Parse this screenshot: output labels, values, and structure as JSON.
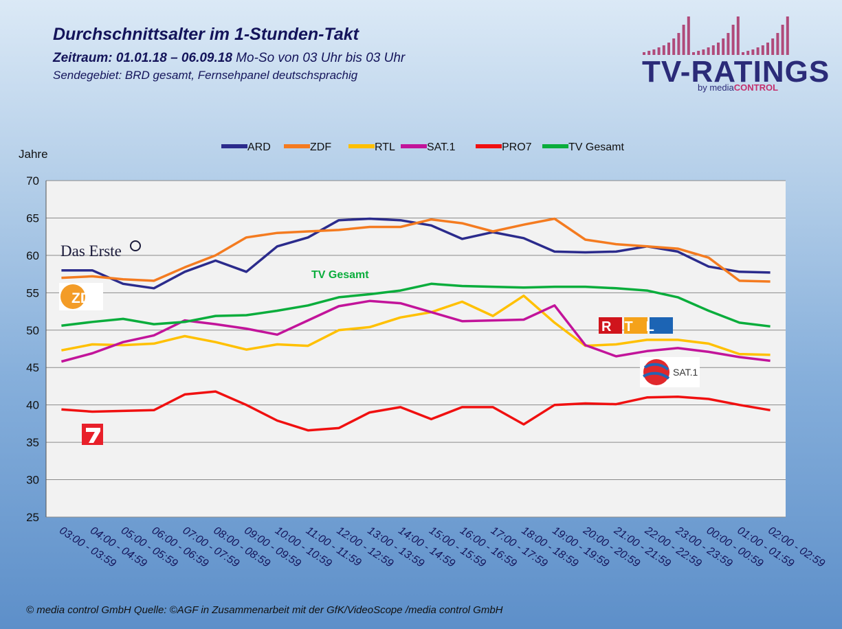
{
  "header": {
    "title": "Durchschnittsalter  im 1-Stunden-Takt",
    "subtitle_bold": "Zeitraum: 01.01.18 – 06.09.18",
    "subtitle_rest": " Mo-So von 03 Uhr bis 03 Uhr",
    "region": "Sendegebiet: BRD gesamt, Fernsehpanel deutschsprachig"
  },
  "logo": {
    "text": "TV-RATINGS",
    "by": "by media",
    "brand": "CONTROL",
    "bar_color": "#b04a7a"
  },
  "footer": "© media control GmbH  Quelle: ©AGF in Zusammenarbeit mit der GfK/VideoScope /media control GmbH",
  "annotations": {
    "tv_gesamt": "TV Gesamt",
    "das_erste": "Das Erste",
    "zdf": "ZDF",
    "sat1": "SAT.1",
    "rtl": "RTL"
  },
  "chart_data": {
    "type": "line",
    "ylabel": "Jahre",
    "ylim": [
      25,
      70
    ],
    "yticks": [
      25,
      30,
      35,
      40,
      45,
      50,
      55,
      60,
      65,
      70
    ],
    "grid": true,
    "legend_position": "top",
    "categories": [
      "03:00 - 03:59",
      "04:00 - 04:59",
      "05:00 - 05:59",
      "06:00 - 06:59",
      "07:00 - 07:59",
      "08:00 - 08:59",
      "09:00 - 09:59",
      "10:00 - 10:59",
      "11:00 - 11:59",
      "12:00 - 12:59",
      "13:00 - 13:59",
      "14:00 - 14:59",
      "15:00 - 15:59",
      "16:00 - 16:59",
      "17:00 - 17:59",
      "18:00 - 18:59",
      "19:00 - 19:59",
      "20:00 - 20:59",
      "21:00 - 21:59",
      "22:00 - 22:59",
      "23:00 - 23:59",
      "00:00 - 00:59",
      "01:00 - 01:59",
      "02:00 - 02:59"
    ],
    "series": [
      {
        "name": "ARD",
        "color": "#2b2b8c",
        "values": [
          58.0,
          58.0,
          56.2,
          55.6,
          57.8,
          59.3,
          57.8,
          61.2,
          62.4,
          64.7,
          64.9,
          64.7,
          64.0,
          62.2,
          63.1,
          62.3,
          60.5,
          60.4,
          60.5,
          61.2,
          60.5,
          58.5,
          57.8,
          57.7
        ]
      },
      {
        "name": "ZDF",
        "color": "#f47b20",
        "values": [
          57.0,
          57.2,
          56.8,
          56.6,
          58.4,
          60.0,
          62.4,
          63.0,
          63.2,
          63.4,
          63.8,
          63.8,
          64.8,
          64.3,
          63.2,
          64.1,
          64.9,
          62.1,
          61.5,
          61.2,
          60.9,
          59.7,
          56.6,
          56.5
        ]
      },
      {
        "name": "RTL",
        "color": "#ffc000",
        "values": [
          47.3,
          48.1,
          48.0,
          48.2,
          49.2,
          48.4,
          47.4,
          48.1,
          47.9,
          50.0,
          50.4,
          51.7,
          52.4,
          53.8,
          51.9,
          54.6,
          51.0,
          47.9,
          48.1,
          48.7,
          48.7,
          48.2,
          46.8,
          46.7
        ]
      },
      {
        "name": "SAT.1",
        "color": "#c2149a",
        "values": [
          45.8,
          46.9,
          48.4,
          49.3,
          51.3,
          50.8,
          50.2,
          49.4,
          51.3,
          53.2,
          53.9,
          53.6,
          52.4,
          51.2,
          51.3,
          51.4,
          53.3,
          48.0,
          46.5,
          47.2,
          47.6,
          47.1,
          46.4,
          45.9
        ]
      },
      {
        "name": "PRO7",
        "color": "#f01010",
        "values": [
          39.4,
          39.1,
          39.2,
          39.3,
          41.4,
          41.8,
          40.0,
          37.9,
          36.6,
          36.9,
          39.0,
          39.7,
          38.1,
          39.7,
          39.7,
          37.4,
          40.0,
          40.2,
          40.1,
          41.0,
          41.1,
          40.8,
          40.0,
          39.3
        ]
      },
      {
        "name": "TV Gesamt",
        "color": "#0aad3c",
        "values": [
          50.6,
          51.1,
          51.5,
          50.8,
          51.1,
          51.9,
          52.0,
          52.6,
          53.3,
          54.4,
          54.8,
          55.3,
          56.2,
          55.9,
          55.8,
          55.7,
          55.8,
          55.8,
          55.6,
          55.3,
          54.4,
          52.6,
          51.0,
          50.5
        ]
      }
    ]
  }
}
